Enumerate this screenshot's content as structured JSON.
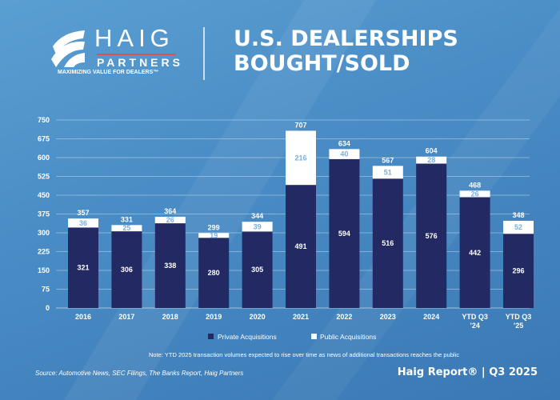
{
  "header": {
    "logo_name": "HAIG",
    "logo_sub": "PARTNERS",
    "logo_tagline": "MAXIMIZING VALUE FOR DEALERS™",
    "title_line1": "U.S. DEALERSHIPS",
    "title_line2": "BOUGHT/SOLD"
  },
  "chart_data": {
    "type": "bar",
    "stacked": true,
    "title": "U.S. Dealerships Bought/Sold",
    "categories": [
      "2016",
      "2017",
      "2018",
      "2019",
      "2020",
      "2021",
      "2022",
      "2023",
      "2024",
      "YTD Q3 '24",
      "YTD Q3 '25"
    ],
    "category_lines": [
      [
        "2016"
      ],
      [
        "2017"
      ],
      [
        "2018"
      ],
      [
        "2019"
      ],
      [
        "2020"
      ],
      [
        "2021"
      ],
      [
        "2022"
      ],
      [
        "2023"
      ],
      [
        "2024"
      ],
      [
        "YTD Q3",
        "’24"
      ],
      [
        "YTD Q3",
        "’25"
      ]
    ],
    "series": [
      {
        "name": "Private Acquisitions",
        "color": "#232a63",
        "values": [
          321,
          306,
          338,
          280,
          305,
          491,
          594,
          516,
          576,
          442,
          296
        ]
      },
      {
        "name": "Public Acquisitions",
        "color": "#ffffff",
        "values": [
          36,
          25,
          26,
          19,
          39,
          216,
          40,
          51,
          28,
          26,
          52
        ]
      }
    ],
    "totals": [
      357,
      331,
      364,
      299,
      344,
      707,
      634,
      567,
      604,
      468,
      348
    ],
    "ylim": [
      0,
      750
    ],
    "yticks": [
      0,
      75,
      150,
      225,
      300,
      375,
      450,
      525,
      600,
      675,
      750
    ],
    "grid": true,
    "legend": "bottom"
  },
  "footer": {
    "note": "Note: YTD 2025 transaction volumes expected to rise over time as news of additional transactions reaches the public",
    "source": "Source: Automotive News, SEC Filings, The Banks Report, Haig Partners",
    "report": "Haig Report® | Q3 2025"
  }
}
